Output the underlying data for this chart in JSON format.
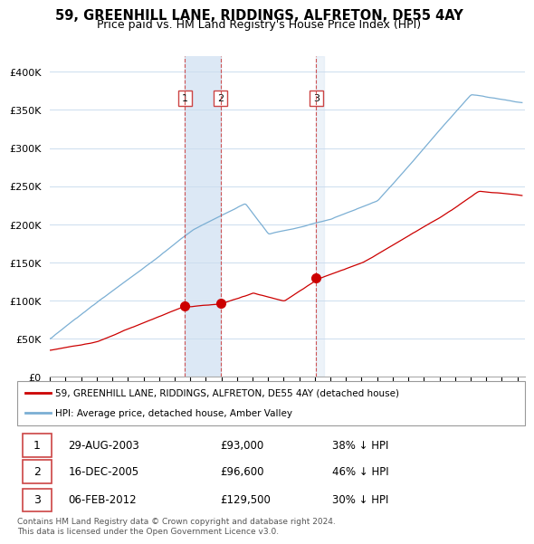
{
  "title": "59, GREENHILL LANE, RIDDINGS, ALFRETON, DE55 4AY",
  "subtitle": "Price paid vs. HM Land Registry's House Price Index (HPI)",
  "ylabel_ticks": [
    "£0",
    "£50K",
    "£100K",
    "£150K",
    "£200K",
    "£250K",
    "£300K",
    "£350K",
    "£400K"
  ],
  "ytick_values": [
    0,
    50000,
    100000,
    150000,
    200000,
    250000,
    300000,
    350000,
    400000
  ],
  "ylim": [
    0,
    420000
  ],
  "xlim_start": 1995.0,
  "xlim_end": 2025.5,
  "sale_dates": [
    2003.66,
    2005.96,
    2012.09
  ],
  "sale_prices": [
    93000,
    96600,
    129500
  ],
  "sale_labels": [
    "1",
    "2",
    "3"
  ],
  "sale_date_str": [
    "29-AUG-2003",
    "16-DEC-2005",
    "06-FEB-2012"
  ],
  "sale_price_str": [
    "£93,000",
    "£96,600",
    "£129,500"
  ],
  "sale_pct_str": [
    "38% ↓ HPI",
    "46% ↓ HPI",
    "30% ↓ HPI"
  ],
  "line_color_red": "#cc0000",
  "line_color_blue": "#7bafd4",
  "vline_color": "#cc4444",
  "shade_color": "#dce8f5",
  "background_color": "#ffffff",
  "grid_color": "#ccddee",
  "legend_label_red": "59, GREENHILL LANE, RIDDINGS, ALFRETON, DE55 4AY (detached house)",
  "legend_label_blue": "HPI: Average price, detached house, Amber Valley",
  "footnote": "Contains HM Land Registry data © Crown copyright and database right 2024.\nThis data is licensed under the Open Government Licence v3.0.",
  "title_fontsize": 10.5,
  "subtitle_fontsize": 9
}
